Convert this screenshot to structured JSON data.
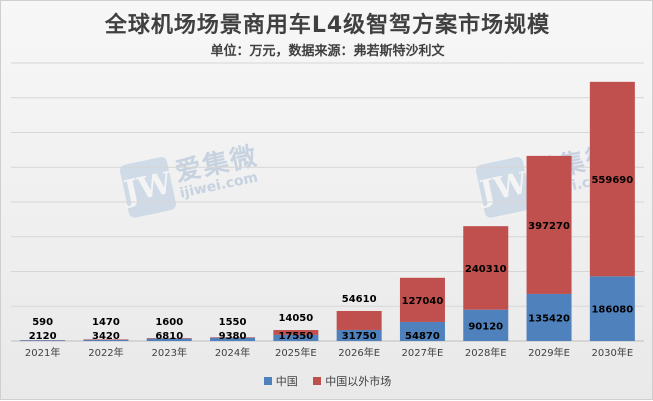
{
  "chart_data": {
    "type": "bar",
    "stacked": true,
    "title": "全球机场场景商用车L4级智驾方案市场规模",
    "subtitle": "单位：万元，数据来源：弗若斯特沙利文",
    "categories": [
      "2021年",
      "2022年",
      "2023年",
      "2024年",
      "2025年E",
      "2026年E",
      "2027年E",
      "2028年E",
      "2029年E",
      "2030年E"
    ],
    "series": [
      {
        "name": "中国",
        "color": "#4f81bd",
        "values": [
          2120,
          3420,
          6810,
          9380,
          17550,
          31750,
          54870,
          90120,
          135420,
          186080
        ]
      },
      {
        "name": "中国以外市场",
        "color": "#c0504d",
        "values": [
          590,
          1470,
          1600,
          1550,
          14050,
          54610,
          127040,
          240310,
          397270,
          559690
        ]
      }
    ],
    "ylim": [
      0,
      800000
    ],
    "grid": true,
    "legend": "bottom"
  },
  "watermark": {
    "cn": "爱集微",
    "en": "ijiwei.com",
    "glyph": "JW"
  }
}
